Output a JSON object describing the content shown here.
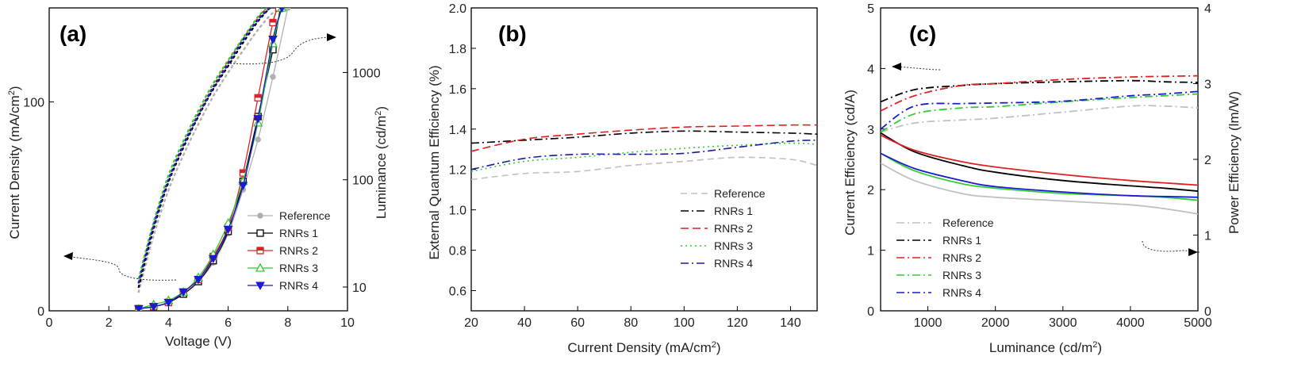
{
  "chart_data": [
    {
      "panel_label": "(a)",
      "type": "line",
      "xlabel": "Voltage (V)",
      "ylabel": "Current Density (mA/cm",
      "ylabel_sup": "2",
      "ylabel_end": ")",
      "y2label": "Luminance (cd/m",
      "y2label_sup": "2",
      "y2label_end": ")",
      "xlim": [
        0,
        10
      ],
      "ylim": [
        0,
        145
      ],
      "y2lim": [
        6,
        4000
      ],
      "y2scale": "log",
      "xticks": [
        "0",
        "2",
        "4",
        "6",
        "8",
        "10"
      ],
      "yticks": [
        "0",
        "100"
      ],
      "y2ticks": [
        "10",
        "100",
        "1000"
      ],
      "legend_position": "center-right",
      "series": [
        {
          "name": "Reference",
          "color": "#b0b0b0",
          "marker": "circle-filled",
          "x": [
            3.0,
            3.5,
            4.0,
            4.5,
            5.0,
            5.5,
            6.0,
            6.5,
            7.0,
            7.5,
            8.0
          ],
          "y": [
            1,
            2,
            4,
            8,
            14,
            23,
            37,
            58,
            82,
            112,
            145
          ],
          "lum_x": [
            3.0,
            3.5,
            4.0,
            4.5,
            5.0,
            5.5,
            6.0,
            6.5,
            7.0,
            7.5,
            7.9
          ],
          "lum_y": [
            9,
            30,
            80,
            170,
            330,
            600,
            1000,
            1600,
            2500,
            3600,
            4000
          ]
        },
        {
          "name": "RNRs 1",
          "color": "#000000",
          "marker": "square-open",
          "x": [
            3.0,
            3.5,
            4.0,
            4.5,
            5.0,
            5.5,
            6.0,
            6.5,
            7.0,
            7.5,
            7.75
          ],
          "y": [
            1,
            2,
            4,
            8,
            14,
            24,
            38,
            62,
            93,
            125,
            145
          ],
          "lum_x": [
            3.0,
            3.5,
            4.0,
            4.5,
            5.0,
            5.5,
            6.0,
            6.5,
            7.0,
            7.4
          ],
          "lum_y": [
            10,
            35,
            95,
            200,
            390,
            700,
            1150,
            1900,
            3000,
            4000
          ]
        },
        {
          "name": "RNRs 2",
          "color": "#e02020",
          "marker": "square-half",
          "x": [
            3.0,
            3.5,
            4.0,
            4.5,
            5.0,
            5.5,
            6.0,
            6.5,
            7.0,
            7.5,
            7.7
          ],
          "y": [
            1,
            2,
            4,
            9,
            15,
            26,
            40,
            66,
            102,
            138,
            145
          ],
          "lum_x": [
            3.0,
            3.5,
            4.0,
            4.5,
            5.0,
            5.5,
            6.0,
            6.5,
            7.0,
            7.3
          ],
          "lum_y": [
            11,
            38,
            100,
            215,
            410,
            740,
            1250,
            2050,
            3200,
            4000
          ]
        },
        {
          "name": "RNRs 3",
          "color": "#33cc33",
          "marker": "triangle-open",
          "x": [
            3.0,
            3.5,
            4.0,
            4.5,
            5.0,
            5.5,
            6.0,
            6.5,
            7.0,
            7.5,
            7.8
          ],
          "y": [
            1,
            3,
            5,
            9,
            16,
            27,
            42,
            62,
            90,
            128,
            145
          ],
          "lum_x": [
            3.0,
            3.5,
            4.0,
            4.5,
            5.0,
            5.5,
            6.0,
            6.5,
            7.0,
            7.3
          ],
          "lum_y": [
            12,
            40,
            110,
            230,
            440,
            790,
            1300,
            2100,
            3300,
            4000
          ]
        },
        {
          "name": "RNRs 4",
          "color": "#1a1ad0",
          "marker": "triangle-down-filled",
          "x": [
            3.0,
            3.5,
            4.0,
            4.5,
            5.0,
            5.5,
            6.0,
            6.5,
            7.0,
            7.5,
            7.8
          ],
          "y": [
            1,
            2,
            4,
            9,
            15,
            25,
            39,
            60,
            92,
            130,
            145
          ],
          "lum_x": [
            3.0,
            3.5,
            4.0,
            4.5,
            5.0,
            5.5,
            6.0,
            6.5,
            7.0,
            7.4
          ],
          "lum_y": [
            11,
            37,
            100,
            210,
            400,
            720,
            1200,
            2000,
            3100,
            4000
          ]
        }
      ]
    },
    {
      "panel_label": "(b)",
      "type": "line",
      "xlabel": "Current Density (mA/cm",
      "xlabel_sup": "2",
      "xlabel_end": ")",
      "ylabel": "External Quantum Efficiency (%)",
      "xlim": [
        20,
        150
      ],
      "ylim": [
        0.5,
        2.0
      ],
      "xticks": [
        "20",
        "40",
        "60",
        "80",
        "100",
        "120",
        "140"
      ],
      "yticks": [
        "0.6",
        "0.8",
        "1.0",
        "1.2",
        "1.4",
        "1.6",
        "1.8",
        "2.0"
      ],
      "legend_position": "center-right",
      "series": [
        {
          "name": "Reference",
          "color": "#c0c0c0",
          "dash": "8,5",
          "x": [
            20,
            40,
            60,
            80,
            100,
            120,
            140,
            150
          ],
          "y": [
            1.15,
            1.18,
            1.19,
            1.22,
            1.24,
            1.26,
            1.25,
            1.22
          ]
        },
        {
          "name": "RNRs 1",
          "color": "#000000",
          "dash": "10,4,2,4",
          "x": [
            20,
            40,
            60,
            80,
            100,
            120,
            140,
            150
          ],
          "y": [
            1.33,
            1.345,
            1.36,
            1.38,
            1.39,
            1.385,
            1.38,
            1.375
          ]
        },
        {
          "name": "RNRs 2",
          "color": "#e02020",
          "dash": "10,5",
          "x": [
            20,
            40,
            60,
            80,
            100,
            120,
            140,
            150
          ],
          "y": [
            1.29,
            1.35,
            1.375,
            1.395,
            1.41,
            1.415,
            1.42,
            1.42
          ]
        },
        {
          "name": "RNRs 3",
          "color": "#33cc33",
          "dash": "2,4",
          "x": [
            20,
            40,
            60,
            80,
            100,
            120,
            140,
            150
          ],
          "y": [
            1.19,
            1.24,
            1.26,
            1.285,
            1.305,
            1.32,
            1.33,
            1.325
          ]
        },
        {
          "name": "RNRs 4",
          "color": "#1a1aa0",
          "dash": "10,4,2,4",
          "x": [
            20,
            40,
            60,
            80,
            100,
            120,
            140,
            150
          ],
          "y": [
            1.2,
            1.255,
            1.275,
            1.275,
            1.28,
            1.31,
            1.34,
            1.345
          ]
        }
      ]
    },
    {
      "panel_label": "(c)",
      "type": "line",
      "xlabel": "Luminance (cd/m",
      "xlabel_sup": "2",
      "xlabel_end": ")",
      "ylabel": "Current Efficiency (cd/A)",
      "y2label": "Power Efficiency (lm/W)",
      "xlim": [
        300,
        5000
      ],
      "ylim": [
        0,
        5
      ],
      "y2lim": [
        0,
        4
      ],
      "xticks": [
        "1000",
        "2000",
        "3000",
        "4000",
        "5000"
      ],
      "yticks": [
        "0",
        "1",
        "2",
        "3",
        "4",
        "5"
      ],
      "y2ticks": [
        "0",
        "1",
        "2",
        "3",
        "4"
      ],
      "legend_position": "bottom-left",
      "series": [
        {
          "name": "Reference",
          "color": "#c0c0c0",
          "dash": "10,4,2,4",
          "x": [
            300,
            800,
            1500,
            2000,
            3000,
            4000,
            4500,
            5000
          ],
          "ce": [
            2.95,
            3.1,
            3.15,
            3.18,
            3.28,
            3.38,
            3.38,
            3.35
          ],
          "pe": [
            1.95,
            1.72,
            1.55,
            1.5,
            1.45,
            1.4,
            1.35,
            1.28
          ]
        },
        {
          "name": "RNRs 1",
          "color": "#000000",
          "dash": "10,4,2,4",
          "x": [
            300,
            800,
            1500,
            2000,
            3000,
            4000,
            4500,
            5000
          ],
          "ce": [
            3.45,
            3.65,
            3.72,
            3.75,
            3.78,
            3.8,
            3.78,
            3.77
          ],
          "pe": [
            2.35,
            2.1,
            1.92,
            1.83,
            1.72,
            1.65,
            1.62,
            1.58
          ]
        },
        {
          "name": "RNRs 2",
          "color": "#e02020",
          "dash": "10,4,2,4",
          "x": [
            300,
            800,
            1500,
            2000,
            3000,
            4000,
            4500,
            5000
          ],
          "ce": [
            3.3,
            3.55,
            3.72,
            3.75,
            3.82,
            3.86,
            3.87,
            3.88
          ],
          "pe": [
            2.32,
            2.12,
            1.97,
            1.9,
            1.8,
            1.72,
            1.69,
            1.66
          ]
        },
        {
          "name": "RNRs 3",
          "color": "#33cc33",
          "dash": "10,4,2,4",
          "x": [
            300,
            800,
            1500,
            2000,
            3000,
            4000,
            4500,
            5000
          ],
          "ce": [
            2.95,
            3.25,
            3.35,
            3.37,
            3.45,
            3.52,
            3.55,
            3.58
          ],
          "pe": [
            2.08,
            1.85,
            1.68,
            1.62,
            1.55,
            1.52,
            1.5,
            1.46
          ]
        },
        {
          "name": "RNRs 4",
          "color": "#1a1ad0",
          "dash": "10,4,2,4",
          "x": [
            300,
            800,
            1500,
            2000,
            3000,
            4000,
            4500,
            5000
          ],
          "ce": [
            3.0,
            3.38,
            3.42,
            3.43,
            3.46,
            3.55,
            3.58,
            3.62
          ],
          "pe": [
            2.08,
            1.88,
            1.72,
            1.64,
            1.57,
            1.52,
            1.51,
            1.5
          ]
        }
      ]
    }
  ]
}
